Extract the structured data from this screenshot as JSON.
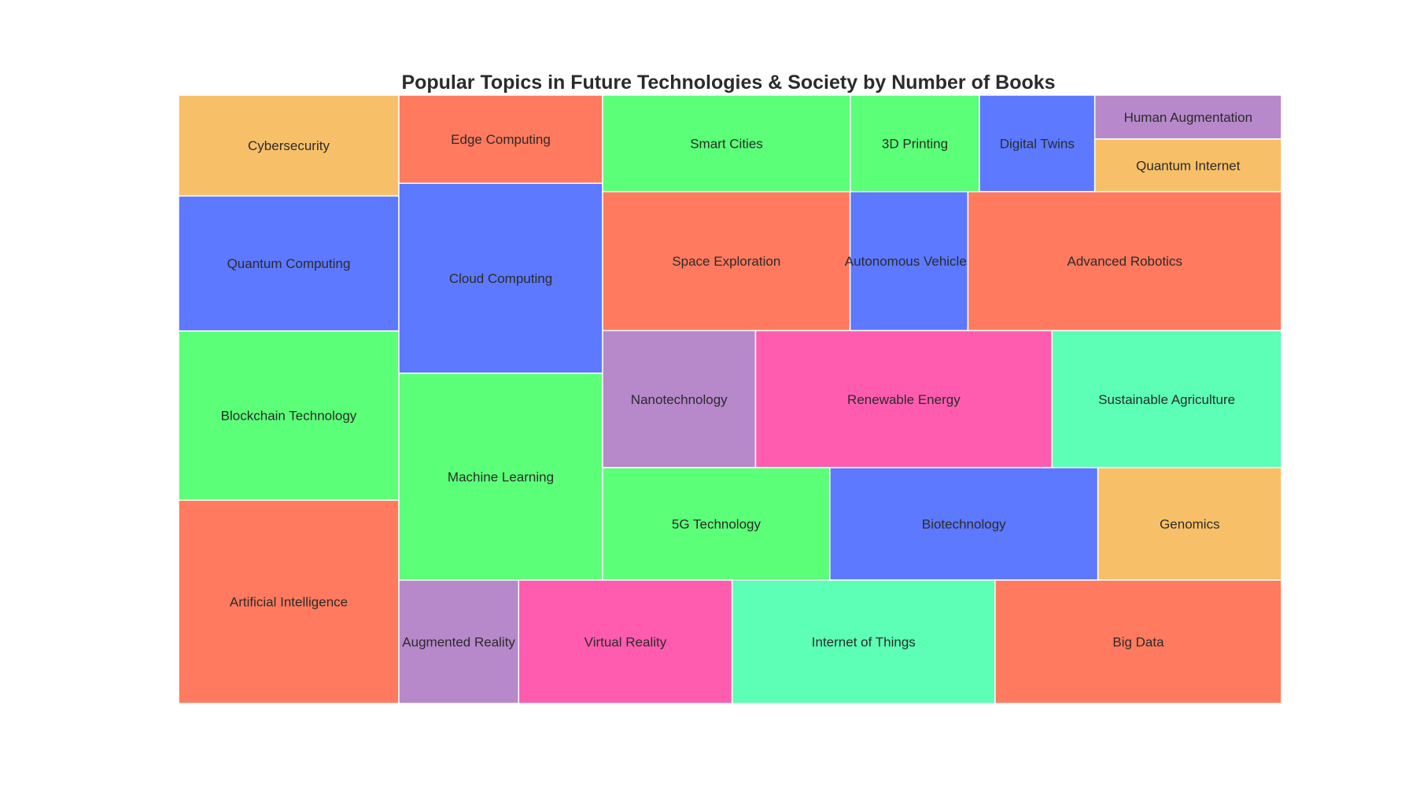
{
  "chart_data": {
    "type": "treemap",
    "title": "Popular Topics in Future Technologies & Society by Number of Books",
    "columns": [
      {
        "rows": [
          {
            "items": [
              {
                "label": "Cybersecurity",
                "value": 6.5,
                "color": "#F7C068"
              }
            ]
          },
          {
            "items": [
              {
                "label": "Quantum Computing",
                "value": 8.7,
                "color": "#5D79FF"
              }
            ]
          },
          {
            "items": [
              {
                "label": "Blockchain Technology",
                "value": 10.9,
                "color": "#5CFF78"
              }
            ]
          },
          {
            "items": [
              {
                "label": "Artificial Intelligence",
                "value": 13.1,
                "color": "#FF7A5E"
              }
            ]
          }
        ]
      },
      {
        "rows": [
          {
            "items": [
              {
                "label": "Edge Computing",
                "value": 5.2,
                "color": "#FF7A5E"
              }
            ]
          },
          {
            "items": [
              {
                "label": "Cloud Computing",
                "value": 11.2,
                "color": "#5D79FF"
              }
            ]
          },
          {
            "items": [
              {
                "label": "Machine Learning",
                "value": 12.2,
                "color": "#5CFF78"
              }
            ]
          }
        ]
      },
      {
        "rows": [
          {
            "items": [
              {
                "label": "Smart Cities",
                "value": 7.3,
                "color": "#5CFF78"
              },
              {
                "label": "3D Printing",
                "value": 3.8,
                "color": "#5CFF78"
              },
              {
                "label": "Digital Twins",
                "value": 3.4,
                "color": "#5D79FF"
              },
              {
                "label": "Human Augmentation / Quantum Internet",
                "value": 5.5,
                "stack": [
                  {
                    "label": "Human Augmentation",
                    "value": 2.5,
                    "color": "#B788CA"
                  },
                  {
                    "label": "Quantum Internet",
                    "value": 3.0,
                    "color": "#F7C068"
                  }
                ]
              }
            ]
          },
          {
            "items": [
              {
                "label": "Space Exploration",
                "value": 10.5,
                "color": "#FF7A5E"
              },
              {
                "label": "Autonomous Vehicles",
                "value": 5.0,
                "color": "#5D79FF"
              },
              {
                "label": "Advanced Robotics",
                "value": 13.3,
                "color": "#FF7A5E"
              }
            ]
          },
          {
            "items": [
              {
                "label": "Nanotechnology",
                "value": 6.4,
                "color": "#B788CA"
              },
              {
                "label": "Renewable Energy",
                "value": 12.4,
                "color": "#FF5CB0"
              },
              {
                "label": "Sustainable Agriculture",
                "value": 9.6,
                "color": "#5CFFB5"
              }
            ]
          },
          {
            "items": [
              {
                "label": "5G Technology",
                "value": 7.8,
                "color": "#5CFF78"
              },
              {
                "label": "Biotechnology",
                "value": 9.2,
                "color": "#5D79FF"
              },
              {
                "label": "Genomics",
                "value": 6.3,
                "color": "#F7C068"
              }
            ]
          }
        ]
      }
    ],
    "bottom_row": {
      "items": [
        {
          "label": "Augmented Reality",
          "value": 4.6,
          "color": "#B788CA"
        },
        {
          "label": "Virtual Reality",
          "value": 8.2,
          "color": "#FF5CB0"
        },
        {
          "label": "Internet of Things",
          "value": 10.1,
          "color": "#5CFFB5"
        },
        {
          "label": "Big Data",
          "value": 11.0,
          "color": "#FF7A5E"
        }
      ]
    }
  }
}
